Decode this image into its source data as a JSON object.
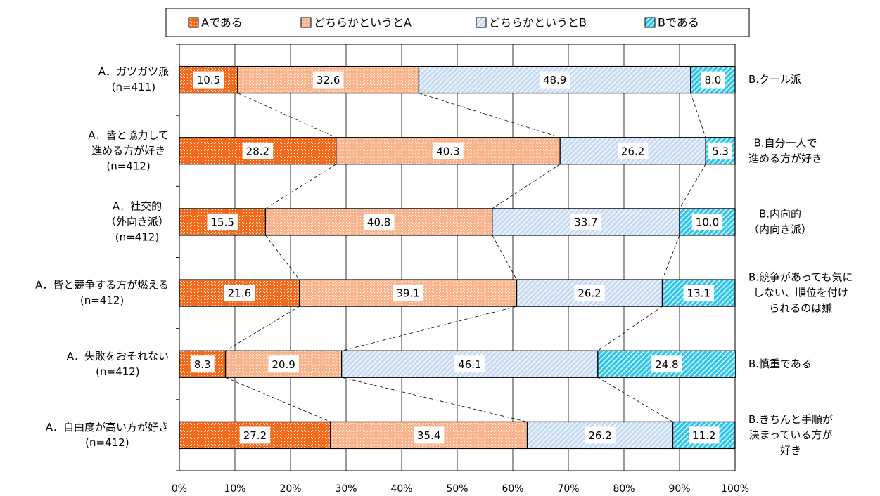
{
  "chart_data": {
    "type": "stacked-bar-horizontal",
    "categories": [
      [
        "A．ガツガツ派",
        "(n=411)"
      ],
      [
        "A．皆と協力して",
        "進める方が好き",
        "(n=412)"
      ],
      [
        "A．社交的",
        "（外向き派）",
        "(n=412)"
      ],
      [
        "A．皆と競争する方が燃える",
        "(n=412)"
      ],
      [
        "A．失敗をおそれない",
        "(n=412)"
      ],
      [
        "A．自由度が高い方が好き",
        "(n=412)"
      ]
    ],
    "right_labels": [
      [
        "B.クール派"
      ],
      [
        "B.自分一人で",
        "進める方が好き"
      ],
      [
        "B.内向的",
        "（内向き派）"
      ],
      [
        "B.競争があっても気に",
        "しない、順位を付け",
        "られるのは嫌"
      ],
      [
        "B.慎重である"
      ],
      [
        "B.きちんと手順が",
        "決まっている方が",
        "好き"
      ]
    ],
    "series": [
      {
        "name": "Aである",
        "color": "#f26b1d",
        "pattern": "dots",
        "values": [
          10.5,
          28.2,
          15.5,
          21.6,
          8.3,
          27.2
        ],
        "value_labels": [
          "10.5",
          "28.2",
          "15.5",
          "21.6",
          "8.3",
          "27.2"
        ]
      },
      {
        "name": "どちらかというとA",
        "color": "#f8b48c",
        "pattern": "dots",
        "values": [
          32.6,
          40.3,
          40.8,
          39.1,
          20.9,
          35.4
        ],
        "value_labels": [
          "32.6",
          "40.3",
          "40.8",
          "39.1",
          "20.9",
          "35.4"
        ]
      },
      {
        "name": "どちらかというとB",
        "color": "#c6dbf3",
        "pattern": "stripes",
        "values": [
          48.9,
          26.2,
          33.7,
          26.2,
          46.1,
          26.2
        ],
        "value_labels": [
          "48.9",
          "26.2",
          "33.7",
          "26.2",
          "46.1",
          "26.2"
        ]
      },
      {
        "name": "Bである",
        "color": "#2ec5ea",
        "pattern": "stripes",
        "values": [
          8.0,
          5.3,
          10.0,
          13.1,
          24.8,
          11.2
        ],
        "value_labels": [
          "8.0",
          "5.3",
          "10.0",
          "13.1",
          "24.8",
          "11.2"
        ]
      }
    ],
    "xlim": [
      0,
      100
    ],
    "xticks": [
      {
        "value": 0,
        "label": "0%"
      },
      {
        "value": 10,
        "label": "10%"
      },
      {
        "value": 20,
        "label": "20%"
      },
      {
        "value": 30,
        "label": "30%"
      },
      {
        "value": 40,
        "label": "40%"
      },
      {
        "value": 50,
        "label": "50%"
      },
      {
        "value": 60,
        "label": "60%"
      },
      {
        "value": 70,
        "label": "70%"
      },
      {
        "value": 80,
        "label": "80%"
      },
      {
        "value": 90,
        "label": "90%"
      },
      {
        "value": 100,
        "label": "100%"
      }
    ],
    "grid": true,
    "connectors": true,
    "legend": "top"
  }
}
